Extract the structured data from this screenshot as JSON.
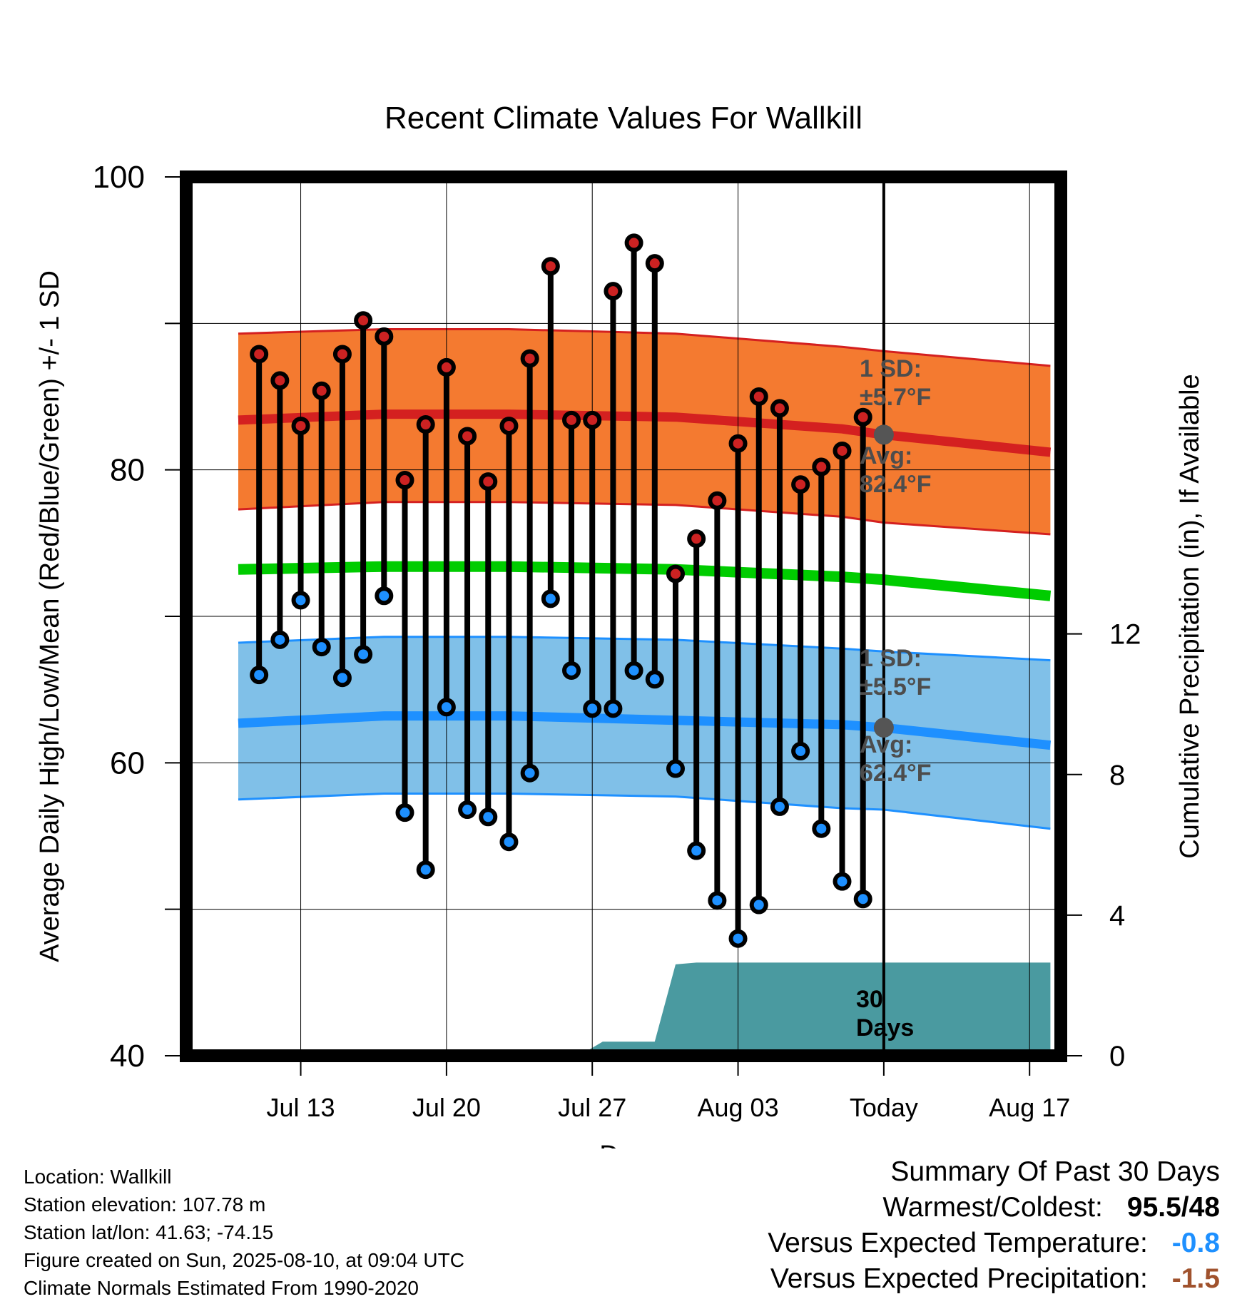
{
  "chart_data": {
    "type": "line",
    "title": "Recent Climate Values For Wallkill",
    "xlabel": "Day",
    "ylabel": "Average Daily High/Low/Mean (Red/Blue/Green) +/- 1 SD",
    "y2label": "Cumulative Precipitation (in), If Available",
    "ylim": [
      40,
      100
    ],
    "y2lim": [
      0,
      25
    ],
    "y_ticks": [
      "40",
      "60",
      "80",
      "100"
    ],
    "y2_ticks": [
      "0",
      "4",
      "8",
      "12"
    ],
    "x_ticks": [
      "Jul 13",
      "Jul 20",
      "Jul 27",
      "Aug 03",
      "Today",
      "Aug 17"
    ],
    "x_range_days": [
      -33.5,
      8.5
    ],
    "x_tick_days": [
      -28,
      -21,
      -14,
      -7,
      0,
      7
    ],
    "grid": true,
    "daily": {
      "day_offset": [
        -30,
        -29,
        -28,
        -27,
        -26,
        -25,
        -24,
        -23,
        -22,
        -21,
        -20,
        -19,
        -18,
        -17,
        -16,
        -15,
        -14,
        -13,
        -12,
        -11,
        -10,
        -9,
        -8,
        -7,
        -6,
        -5,
        -4,
        -3,
        -2,
        -1
      ],
      "high": [
        87.9,
        86.1,
        83.0,
        85.4,
        87.9,
        90.2,
        89.1,
        79.3,
        83.1,
        87.0,
        82.3,
        79.2,
        83.0,
        87.6,
        93.9,
        83.4,
        83.4,
        92.2,
        95.5,
        94.1,
        72.9,
        75.3,
        77.9,
        81.8,
        85.0,
        84.2,
        79.0,
        80.2,
        81.3,
        83.6
      ],
      "low": [
        66.0,
        68.4,
        71.1,
        67.9,
        65.8,
        67.4,
        71.4,
        56.6,
        52.7,
        63.8,
        56.8,
        56.3,
        54.6,
        59.3,
        71.2,
        66.3,
        63.7,
        63.7,
        66.3,
        65.7,
        59.6,
        54.0,
        50.6,
        48.0,
        50.3,
        57.0,
        60.8,
        55.5,
        51.9,
        50.7
      ]
    },
    "normals": {
      "day_offset": [
        -31,
        -24,
        -18,
        -10,
        -2,
        0,
        8
      ],
      "high_avg": [
        83.4,
        83.8,
        83.8,
        83.6,
        82.8,
        82.4,
        81.2
      ],
      "high_sd_upper": [
        89.3,
        89.6,
        89.6,
        89.3,
        88.4,
        88.1,
        87.1
      ],
      "high_sd_lower": [
        77.3,
        77.8,
        77.8,
        77.6,
        76.8,
        76.4,
        75.6
      ],
      "mean": [
        73.2,
        73.4,
        73.4,
        73.2,
        72.7,
        72.5,
        71.4
      ],
      "low_avg": [
        62.7,
        63.2,
        63.2,
        62.9,
        62.6,
        62.4,
        61.2
      ],
      "low_sd_upper": [
        68.2,
        68.6,
        68.6,
        68.4,
        67.8,
        67.6,
        67.0
      ],
      "low_sd_lower": [
        57.5,
        57.9,
        57.9,
        57.7,
        56.9,
        56.8,
        55.5
      ]
    },
    "precipitation": {
      "day_offset": [
        -31,
        -27,
        -14.5,
        -13.5,
        -11,
        -10,
        -9,
        -8,
        8
      ],
      "cumulative": [
        0,
        0.05,
        0.05,
        0.4,
        0.4,
        2.6,
        2.65,
        2.65,
        2.65
      ]
    },
    "annotations": {
      "high_sd_line1": "1 SD:",
      "high_sd_line2": "±5.7°F",
      "high_avg_line1": "Avg:",
      "high_avg_line2": "82.4°F",
      "low_sd_line1": "1 SD:",
      "low_sd_line2": "±5.5°F",
      "low_avg_line1": "Avg:",
      "low_avg_line2": "62.4°F",
      "precip_line1": "30",
      "precip_line2": "Days"
    },
    "colors": {
      "high_band": "#f47a30",
      "high_line": "#d42020",
      "mean_line": "#00cc00",
      "low_band": "#80c0e8",
      "low_line": "#1e90ff",
      "precip": "#4a9aa0",
      "high_marker": "#cc2222",
      "low_marker": "#1e90ff"
    }
  },
  "footer": {
    "location": "Location: Wallkill",
    "elevation": "Station elevation: 107.78 m",
    "latlon": "Station lat/lon: 41.63; -74.15",
    "created": "Figure created on Sun, 2025-08-10, at 09:04 UTC",
    "normals": "Climate Normals Estimated From 1990-2020"
  },
  "summary": {
    "title": "Summary Of Past 30 Days",
    "warmest_label": "Warmest/Coldest:",
    "warmest_value": "95.5/48",
    "temp_label": "Versus Expected Temperature:",
    "temp_value": "-0.8",
    "temp_color": "#1e90ff",
    "precip_label": "Versus Expected Precipitation:",
    "precip_value": "-1.5",
    "precip_color": "#a0522d"
  }
}
